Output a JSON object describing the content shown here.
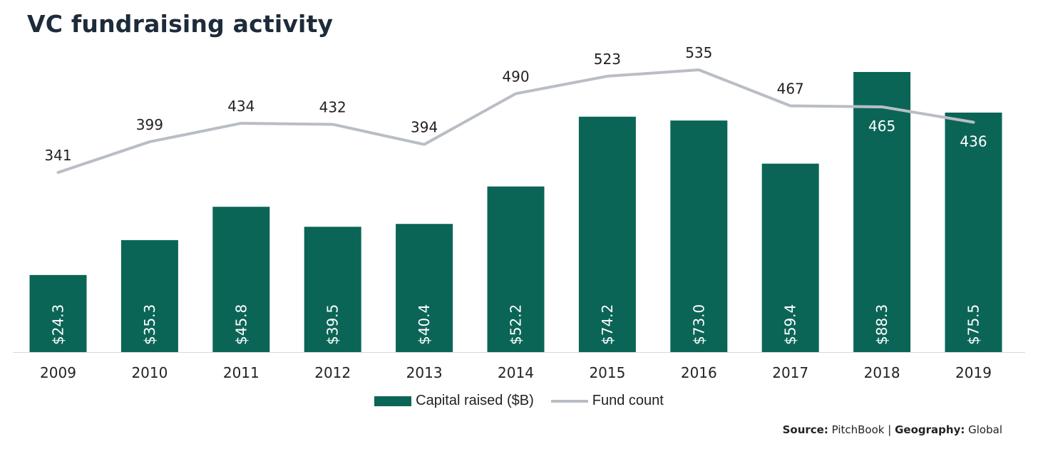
{
  "title": "VC fundraising activity",
  "colors": {
    "bar": "#0b6557",
    "line": "#b9bec4",
    "baseline": "#d9d9d9"
  },
  "chart_data": {
    "type": "bar",
    "categories": [
      "2009",
      "2010",
      "2011",
      "2012",
      "2013",
      "2014",
      "2015",
      "2016",
      "2017",
      "2018",
      "2019"
    ],
    "series": [
      {
        "name": "Capital raised ($B)",
        "type": "bar",
        "values": [
          24.3,
          35.3,
          45.8,
          39.5,
          40.4,
          52.2,
          74.2,
          73.0,
          59.4,
          88.3,
          75.5
        ],
        "labels": [
          "$24.3",
          "$35.3",
          "$45.8",
          "$39.5",
          "$40.4",
          "$52.2",
          "$74.2",
          "$73.0",
          "$59.4",
          "$88.3",
          "$75.5"
        ]
      },
      {
        "name": "Fund count",
        "type": "line",
        "values": [
          341,
          399,
          434,
          432,
          394,
          490,
          523,
          535,
          467,
          465,
          436
        ]
      }
    ],
    "legend_position": "bottom-center",
    "grid": false
  },
  "legend": {
    "bar_label": "Capital raised ($B)",
    "line_label": "Fund count"
  },
  "source": {
    "source_label": "Source:",
    "source_value": "PitchBook",
    "separator": "|",
    "geo_label": "Geography:",
    "geo_value": "Global"
  }
}
